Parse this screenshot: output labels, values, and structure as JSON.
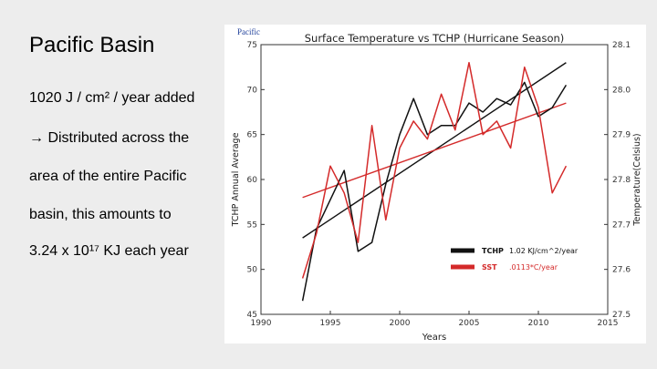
{
  "slide": {
    "title": "Pacific Basin",
    "bullets": [
      "1020 J / cm² / year added",
      "→ Distributed across the",
      "area of the entire Pacific",
      "basin, this amounts to",
      "3.24 x 10¹⁷ KJ each year"
    ]
  },
  "figure": {
    "corner_label": "Pacific"
  },
  "chart_data": {
    "type": "line",
    "title": "Surface Temperature vs TCHP (Hurricane Season)",
    "xlabel": "Years",
    "ylabel_left": "TCHP Annual Average",
    "ylabel_right": "Temperature(Celsius)",
    "xlim": [
      1990,
      2015
    ],
    "ylim_left": [
      45,
      75
    ],
    "ylim_right": [
      27.5,
      28.1
    ],
    "x_ticks": [
      "1990",
      "1995",
      "2000",
      "2005",
      "2010",
      "2015"
    ],
    "y_left_ticks": [
      "45",
      "50",
      "55",
      "60",
      "65",
      "70",
      "75"
    ],
    "y_right_ticks": [
      "27.5",
      "27.6",
      "27.7",
      "27.8",
      "27.9",
      "28.0",
      "28.1"
    ],
    "grid": false,
    "legend_position": "bottom-right",
    "series": [
      {
        "name": "TCHP",
        "color": "#111111",
        "axis": "left",
        "x": [
          1993,
          1994,
          1996,
          1997,
          1998,
          1999,
          2000,
          2001,
          2002,
          2003,
          2004,
          2005,
          2006,
          2007,
          2008,
          2009,
          2010,
          2011,
          2012
        ],
        "y": [
          46.5,
          54.5,
          61.0,
          52.0,
          53.0,
          59.5,
          65.0,
          69.0,
          65.0,
          66.0,
          66.0,
          68.5,
          67.5,
          69.0,
          68.3,
          70.8,
          67.0,
          68.0,
          70.5
        ]
      },
      {
        "name": "SST",
        "color": "#d42a2a",
        "axis": "right",
        "x": [
          1993,
          1994,
          1995,
          1996,
          1997,
          1998,
          1999,
          2000,
          2001,
          2002,
          2003,
          2004,
          2005,
          2006,
          2007,
          2008,
          2009,
          2010,
          2011,
          2012
        ],
        "y": [
          27.58,
          27.68,
          27.83,
          27.77,
          27.66,
          27.92,
          27.71,
          27.87,
          27.93,
          27.89,
          27.99,
          27.91,
          28.06,
          27.9,
          27.93,
          27.87,
          28.05,
          27.96,
          27.77,
          27.83
        ]
      }
    ],
    "trendlines": [
      {
        "series": "TCHP",
        "axis": "left",
        "color": "#111111",
        "rate_label": "1.02  KJ/cm^2/year",
        "x": [
          1993,
          2012
        ],
        "y": [
          53.5,
          73.0
        ]
      },
      {
        "series": "SST",
        "axis": "right",
        "color": "#d42a2a",
        "rate_label": ".0113*C/year",
        "x": [
          1993,
          2012
        ],
        "y": [
          27.76,
          27.97
        ]
      }
    ]
  }
}
